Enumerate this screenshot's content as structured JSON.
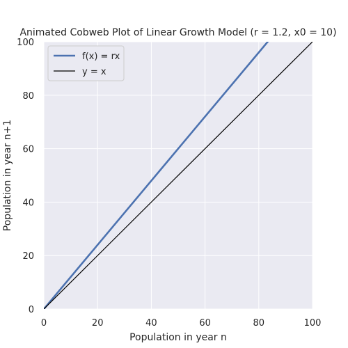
{
  "chart_data": {
    "type": "line",
    "title": "Animated Cobweb Plot of Linear Growth Model (r = 1.2, x0 = 10)",
    "xlabel": "Population in year n",
    "ylabel": "Population in year n+1",
    "xlim": [
      0,
      100
    ],
    "ylim": [
      0,
      100
    ],
    "xticks": [
      0,
      20,
      40,
      60,
      80,
      100
    ],
    "yticks": [
      0,
      20,
      40,
      60,
      80,
      100
    ],
    "grid": true,
    "legend_position": "top-left",
    "series": [
      {
        "name": "f(x) = rx",
        "x": [
          0,
          100
        ],
        "y": [
          0,
          120
        ],
        "color": "#4c72b0"
      },
      {
        "name": "y = x",
        "x": [
          0,
          100
        ],
        "y": [
          0,
          100
        ],
        "color": "#000000"
      }
    ],
    "colors": {
      "plot_background": "#eaeaf2",
      "grid": "#ffffff",
      "text": "#262626"
    }
  }
}
